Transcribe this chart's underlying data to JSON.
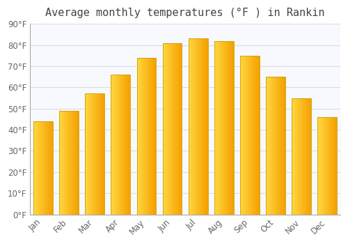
{
  "title": "Average monthly temperatures (°F ) in Rankin",
  "months": [
    "Jan",
    "Feb",
    "Mar",
    "Apr",
    "May",
    "Jun",
    "Jul",
    "Aug",
    "Sep",
    "Oct",
    "Nov",
    "Dec"
  ],
  "values": [
    44,
    49,
    57,
    66,
    74,
    81,
    83,
    82,
    75,
    65,
    55,
    46
  ],
  "bar_color_left": "#FFD740",
  "bar_color_right": "#F5A000",
  "bar_edge_color": "#C8A000",
  "background_color": "#ffffff",
  "plot_bg_color": "#f8f8ff",
  "ylim": [
    0,
    90
  ],
  "yticks": [
    0,
    10,
    20,
    30,
    40,
    50,
    60,
    70,
    80,
    90
  ],
  "ytick_labels": [
    "0°F",
    "10°F",
    "20°F",
    "30°F",
    "40°F",
    "50°F",
    "60°F",
    "70°F",
    "80°F",
    "90°F"
  ],
  "title_fontsize": 11,
  "tick_fontsize": 8.5,
  "grid_color": "#dddddd",
  "spine_color": "#aaaaaa",
  "bar_width": 0.75
}
